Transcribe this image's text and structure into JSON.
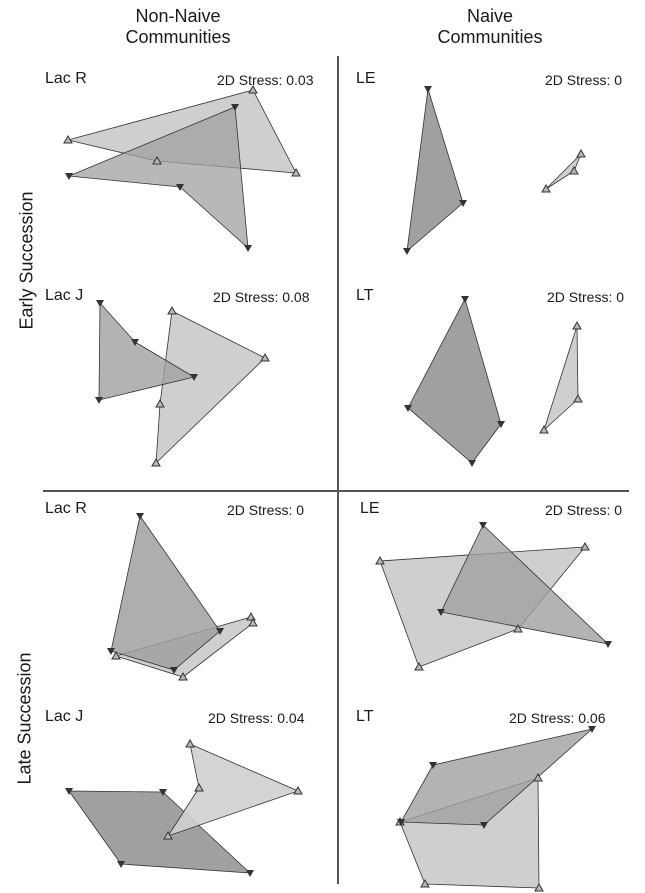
{
  "headers": {
    "non_naive_line1": "Non-Naive",
    "non_naive_line2": "Communities",
    "naive_line1": "Naive",
    "naive_line2": "Communities"
  },
  "rows": {
    "early": "Early Succession",
    "late": "Late Succession"
  },
  "panels": {
    "early_nonnaive_top": {
      "label": "Lac R",
      "stress": "2D Stress: 0.03"
    },
    "early_naive_top": {
      "label": "LE",
      "stress": "2D Stress: 0"
    },
    "early_nonnaive_bottom": {
      "label": "Lac J",
      "stress": "2D Stress: 0.08"
    },
    "early_naive_bottom": {
      "label": "LT",
      "stress": "2D Stress: 0"
    },
    "late_nonnaive_top": {
      "label": "Lac R",
      "stress": "2D Stress: 0"
    },
    "late_naive_top": {
      "label": "LE",
      "stress": "2D Stress: 0"
    },
    "late_nonnaive_bottom": {
      "label": "Lac J",
      "stress": "2D Stress: 0.04"
    },
    "late_naive_bottom": {
      "label": "LT",
      "stress": "2D Stress:  0.06"
    }
  },
  "colors": {
    "non_naive_fill": "#a0a0a0",
    "naive_fill": "#cfcfcf",
    "stroke": "#333333",
    "divider": "#555555"
  }
}
